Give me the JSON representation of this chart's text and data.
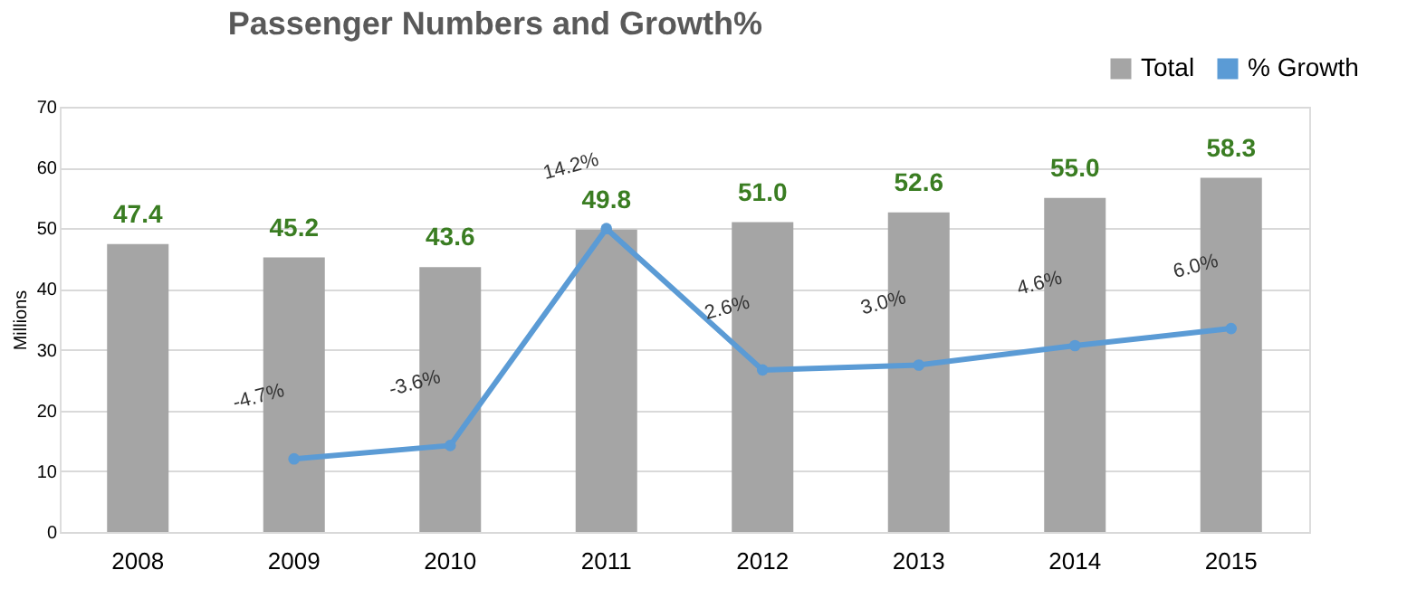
{
  "chart_data": {
    "type": "bar",
    "title": "Passenger Numbers and Growth%",
    "ylabel": "Millions",
    "categories": [
      "2008",
      "2009",
      "2010",
      "2011",
      "2012",
      "2013",
      "2014",
      "2015"
    ],
    "series": [
      {
        "name": "Total",
        "color": "#a5a5a5",
        "values": [
          47.4,
          45.2,
          43.6,
          49.8,
          51.0,
          52.6,
          55.0,
          58.3
        ],
        "value_labels": [
          "47.4",
          "45.2",
          "43.6",
          "49.8",
          "51.0",
          "52.6",
          "55.0",
          "58.3"
        ]
      },
      {
        "name": "% Growth",
        "type": "line",
        "axis": "y2",
        "color": "#5b9bd5",
        "marker": "circle",
        "values": [
          null,
          -4.7,
          -3.6,
          14.2,
          2.6,
          3.0,
          4.6,
          6.0
        ],
        "value_labels": [
          null,
          "-4.7%",
          "-3.6%",
          "14.2%",
          "2.6%",
          "3.0%",
          "4.6%",
          "6.0%"
        ]
      }
    ],
    "ylim": [
      0,
      70
    ],
    "yticks": [
      0,
      10,
      20,
      30,
      40,
      50,
      60,
      70
    ],
    "y2lim": [
      -10.7,
      24.2
    ],
    "grid": "y",
    "legend": "top right"
  }
}
